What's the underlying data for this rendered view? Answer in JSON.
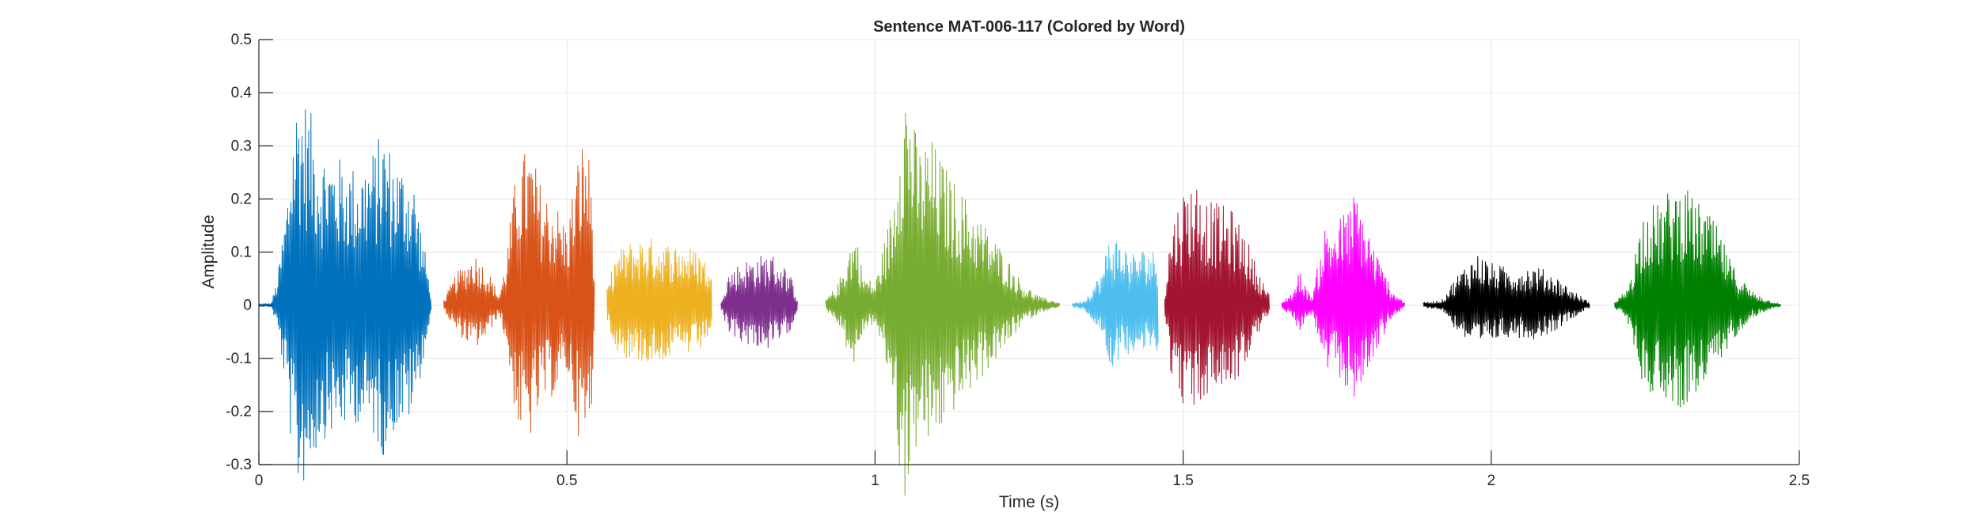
{
  "chart_data": {
    "type": "line",
    "title": "Sentence MAT-006-117 (Colored by Word)",
    "xlabel": "Time (s)",
    "ylabel": "Amplitude",
    "xlim": [
      0,
      2.5
    ],
    "ylim": [
      -0.3,
      0.5
    ],
    "xticks": [
      0,
      0.5,
      1,
      1.5,
      2,
      2.5
    ],
    "xtick_labels": [
      "0",
      "0.5",
      "1",
      "1.5",
      "2",
      "2.5"
    ],
    "yticks": [
      -0.3,
      -0.2,
      -0.1,
      0,
      0.1,
      0.2,
      0.3,
      0.4,
      0.5
    ],
    "ytick_labels": [
      "-0.3",
      "-0.2",
      "-0.1",
      "0",
      "0.1",
      "0.2",
      "0.3",
      "0.4",
      "0.5"
    ],
    "grid": true,
    "series": [
      {
        "color": "#0072BD",
        "x_range": [
          0.0,
          0.28
        ],
        "envelope": [
          [
            0.0,
            0.003
          ],
          [
            0.02,
            0.004
          ],
          [
            0.03,
            0.05
          ],
          [
            0.045,
            0.2
          ],
          [
            0.055,
            0.35
          ],
          [
            0.065,
            0.42
          ],
          [
            0.08,
            0.38
          ],
          [
            0.1,
            0.3
          ],
          [
            0.13,
            0.28
          ],
          [
            0.16,
            0.26
          ],
          [
            0.19,
            0.3
          ],
          [
            0.2,
            0.34
          ],
          [
            0.22,
            0.28
          ],
          [
            0.25,
            0.25
          ],
          [
            0.27,
            0.1
          ],
          [
            0.28,
            0.02
          ]
        ]
      },
      {
        "color": "#D95319",
        "x_range": [
          0.3,
          0.545
        ],
        "envelope": [
          [
            0.3,
            0.01
          ],
          [
            0.32,
            0.06
          ],
          [
            0.35,
            0.1
          ],
          [
            0.37,
            0.07
          ],
          [
            0.39,
            0.02
          ],
          [
            0.4,
            0.08
          ],
          [
            0.42,
            0.28
          ],
          [
            0.44,
            0.3
          ],
          [
            0.46,
            0.22
          ],
          [
            0.48,
            0.2
          ],
          [
            0.5,
            0.15
          ],
          [
            0.52,
            0.3
          ],
          [
            0.53,
            0.33
          ],
          [
            0.54,
            0.25
          ],
          [
            0.545,
            0.05
          ]
        ]
      },
      {
        "color": "#EDB120",
        "x_range": [
          0.565,
          0.735
        ],
        "envelope": [
          [
            0.565,
            0.03
          ],
          [
            0.58,
            0.1
          ],
          [
            0.6,
            0.12
          ],
          [
            0.63,
            0.13
          ],
          [
            0.66,
            0.12
          ],
          [
            0.7,
            0.11
          ],
          [
            0.72,
            0.1
          ],
          [
            0.735,
            0.05
          ]
        ]
      },
      {
        "color": "#7E2F8E",
        "x_range": [
          0.75,
          0.875
        ],
        "envelope": [
          [
            0.75,
            0.01
          ],
          [
            0.76,
            0.06
          ],
          [
            0.78,
            0.08
          ],
          [
            0.8,
            0.09
          ],
          [
            0.83,
            0.1
          ],
          [
            0.85,
            0.08
          ],
          [
            0.865,
            0.05
          ],
          [
            0.875,
            0.01
          ]
        ]
      },
      {
        "color": "#77AC30",
        "x_range": [
          0.92,
          1.3
        ],
        "envelope": [
          [
            0.92,
            0.01
          ],
          [
            0.94,
            0.04
          ],
          [
            0.96,
            0.12
          ],
          [
            0.97,
            0.14
          ],
          [
            0.98,
            0.06
          ],
          [
            1.0,
            0.04
          ],
          [
            1.03,
            0.2
          ],
          [
            1.04,
            0.38
          ],
          [
            1.05,
            0.44
          ],
          [
            1.07,
            0.3
          ],
          [
            1.09,
            0.32
          ],
          [
            1.12,
            0.25
          ],
          [
            1.15,
            0.2
          ],
          [
            1.18,
            0.15
          ],
          [
            1.21,
            0.1
          ],
          [
            1.24,
            0.04
          ],
          [
            1.27,
            0.015
          ],
          [
            1.3,
            0.005
          ]
        ]
      },
      {
        "color": "#4DBEEE",
        "x_range": [
          1.32,
          1.46
        ],
        "envelope": [
          [
            1.32,
            0.004
          ],
          [
            1.34,
            0.01
          ],
          [
            1.37,
            0.07
          ],
          [
            1.38,
            0.14
          ],
          [
            1.4,
            0.12
          ],
          [
            1.42,
            0.1
          ],
          [
            1.44,
            0.11
          ],
          [
            1.46,
            0.1
          ]
        ]
      },
      {
        "color": "#A2142F",
        "x_range": [
          1.47,
          1.64
        ],
        "envelope": [
          [
            1.47,
            0.02
          ],
          [
            1.48,
            0.15
          ],
          [
            1.5,
            0.22
          ],
          [
            1.52,
            0.24
          ],
          [
            1.54,
            0.2
          ],
          [
            1.56,
            0.19
          ],
          [
            1.58,
            0.18
          ],
          [
            1.6,
            0.14
          ],
          [
            1.62,
            0.07
          ],
          [
            1.64,
            0.02
          ]
        ]
      },
      {
        "color": "#FF00FF",
        "x_range": [
          1.66,
          1.86
        ],
        "envelope": [
          [
            1.66,
            0.005
          ],
          [
            1.68,
            0.03
          ],
          [
            1.69,
            0.07
          ],
          [
            1.7,
            0.03
          ],
          [
            1.71,
            0.02
          ],
          [
            1.73,
            0.15
          ],
          [
            1.75,
            0.16
          ],
          [
            1.77,
            0.19
          ],
          [
            1.78,
            0.22
          ],
          [
            1.8,
            0.15
          ],
          [
            1.82,
            0.08
          ],
          [
            1.84,
            0.03
          ],
          [
            1.86,
            0.005
          ]
        ]
      },
      {
        "color": "#000000",
        "x_range": [
          1.89,
          2.16
        ],
        "envelope": [
          [
            1.89,
            0.005
          ],
          [
            1.92,
            0.01
          ],
          [
            1.94,
            0.05
          ],
          [
            1.96,
            0.08
          ],
          [
            1.98,
            0.1
          ],
          [
            2.0,
            0.08
          ],
          [
            2.03,
            0.07
          ],
          [
            2.07,
            0.075
          ],
          [
            2.1,
            0.06
          ],
          [
            2.13,
            0.03
          ],
          [
            2.16,
            0.005
          ]
        ]
      },
      {
        "color": "#008000",
        "x_range": [
          2.2,
          2.47
        ],
        "envelope": [
          [
            2.2,
            0.005
          ],
          [
            2.22,
            0.03
          ],
          [
            2.24,
            0.14
          ],
          [
            2.25,
            0.2
          ],
          [
            2.27,
            0.19
          ],
          [
            2.29,
            0.22
          ],
          [
            2.31,
            0.23
          ],
          [
            2.33,
            0.2
          ],
          [
            2.35,
            0.18
          ],
          [
            2.37,
            0.14
          ],
          [
            2.39,
            0.08
          ],
          [
            2.42,
            0.03
          ],
          [
            2.45,
            0.01
          ],
          [
            2.47,
            0.003
          ]
        ]
      }
    ]
  }
}
